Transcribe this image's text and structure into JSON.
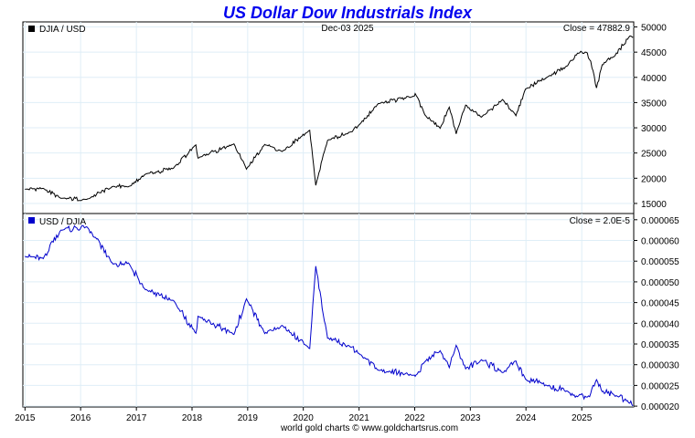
{
  "page": {
    "title": "US Dollar Dow Industrials Index",
    "footer": "world gold charts © www.goldchartsrus.com"
  },
  "colors": {
    "title": "#0000ee",
    "series_top": "#000000",
    "series_bottom": "#0000cc",
    "grid": "#dfeef7",
    "axis": "#000000"
  },
  "chart_data": [
    {
      "type": "line",
      "legend": "DJIA / USD",
      "date_label": "Dec-03  2025",
      "close_label": "Close = 47882.9",
      "ylim": [
        13000,
        51000
      ],
      "y_ticks": [
        "15000",
        "20000",
        "25000",
        "30000",
        "35000",
        "40000",
        "45000",
        "50000"
      ],
      "grid": true,
      "series": [
        {
          "x": [
            "2015-01-01",
            "2015-05-01",
            "2015-08-25",
            "2016-02-10",
            "2016-08-01",
            "2016-11-08",
            "2017-03-01",
            "2017-09-01",
            "2018-01-26",
            "2018-02-09",
            "2018-10-03",
            "2018-12-24",
            "2019-04-23",
            "2019-08-15",
            "2020-02-12",
            "2020-03-23",
            "2020-06-08",
            "2020-11-09",
            "2021-01-01",
            "2021-05-07",
            "2021-12-30",
            "2022-01-04",
            "2022-03-08",
            "2022-06-17",
            "2022-08-16",
            "2022-09-30",
            "2022-12-01",
            "2023-03-15",
            "2023-07-31",
            "2023-10-27",
            "2023-12-29",
            "2024-05-17",
            "2024-09-30",
            "2024-12-04",
            "2025-01-30",
            "2025-03-01",
            "2025-04-08",
            "2025-05-15",
            "2025-08-01",
            "2025-11-12",
            "2025-12-03"
          ],
          "values": [
            17800,
            18000,
            16000,
            15800,
            18400,
            18300,
            20800,
            22000,
            26600,
            24000,
            26800,
            21800,
            26700,
            25300,
            29500,
            18600,
            27500,
            29200,
            30600,
            34800,
            36300,
            36800,
            32600,
            29900,
            34100,
            28800,
            34500,
            32100,
            35600,
            32400,
            37700,
            40000,
            42300,
            44800,
            45000,
            43200,
            37900,
            42500,
            44100,
            48200,
            47882.9
          ]
        }
      ]
    },
    {
      "type": "line",
      "legend": "USD / DJIA",
      "close_label": "Close = 2.0E-5",
      "ylim": [
        1.98e-05,
        6.65e-05
      ],
      "y_ticks": [
        "0.000020",
        "0.000025",
        "0.000030",
        "0.000035",
        "0.000040",
        "0.000045",
        "0.000050",
        "0.000055",
        "0.000060",
        "0.000065"
      ],
      "x_ticks": [
        "2015",
        "2016",
        "2017",
        "2018",
        "2019",
        "2020",
        "2021",
        "2022",
        "2023",
        "2024",
        "2025"
      ],
      "grid": true,
      "series": [
        {
          "x": [
            "2015-01-01",
            "2015-05-01",
            "2015-08-25",
            "2016-02-10",
            "2016-08-01",
            "2016-11-08",
            "2017-03-01",
            "2017-09-01",
            "2018-01-26",
            "2018-02-09",
            "2018-10-03",
            "2018-12-24",
            "2019-04-23",
            "2019-08-15",
            "2020-02-12",
            "2020-03-23",
            "2020-06-08",
            "2020-11-09",
            "2021-01-01",
            "2021-05-07",
            "2021-12-30",
            "2022-01-04",
            "2022-03-08",
            "2022-06-17",
            "2022-08-16",
            "2022-09-30",
            "2022-12-01",
            "2023-03-15",
            "2023-07-31",
            "2023-10-27",
            "2023-12-29",
            "2024-05-17",
            "2024-09-30",
            "2024-12-04",
            "2025-01-30",
            "2025-03-01",
            "2025-04-08",
            "2025-05-15",
            "2025-08-01",
            "2025-11-12",
            "2025-12-03"
          ],
          "values": [
            5.62e-05,
            5.56e-05,
            6.25e-05,
            6.33e-05,
            5.43e-05,
            5.46e-05,
            4.81e-05,
            4.55e-05,
            3.76e-05,
            4.17e-05,
            3.73e-05,
            4.59e-05,
            3.75e-05,
            3.95e-05,
            3.39e-05,
            5.38e-05,
            3.64e-05,
            3.42e-05,
            3.27e-05,
            2.87e-05,
            2.75e-05,
            2.72e-05,
            3.07e-05,
            3.34e-05,
            2.93e-05,
            3.47e-05,
            2.9e-05,
            3.12e-05,
            2.81e-05,
            3.09e-05,
            2.65e-05,
            2.5e-05,
            2.36e-05,
            2.23e-05,
            2.22e-05,
            2.31e-05,
            2.64e-05,
            2.35e-05,
            2.27e-05,
            2.07e-05,
            2e-05
          ]
        }
      ]
    }
  ]
}
